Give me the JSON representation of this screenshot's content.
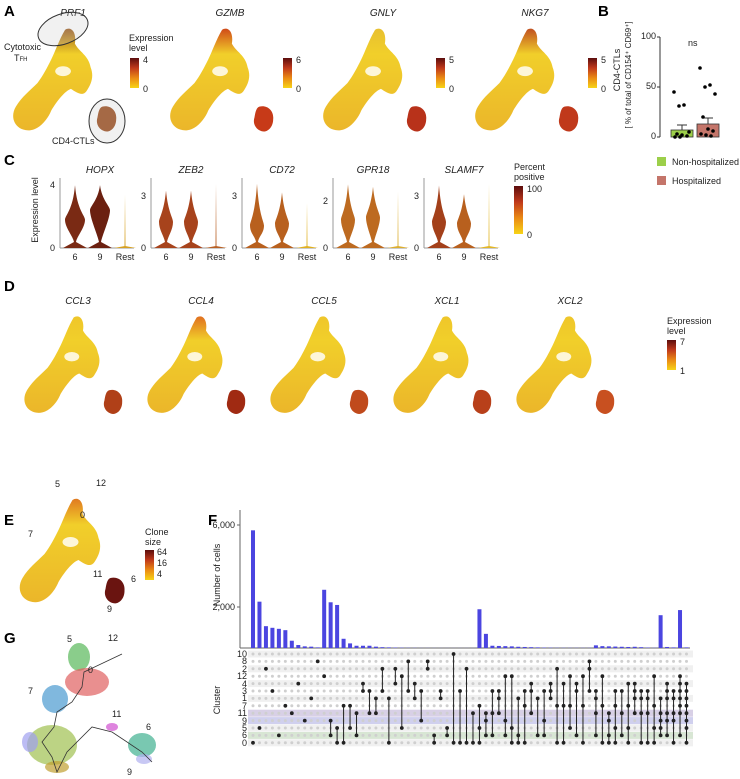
{
  "panel_labels": {
    "a": "A",
    "b": "B",
    "c": "C",
    "d": "D",
    "e": "E",
    "f": "F",
    "g": "G"
  },
  "panel_a": {
    "legend_title": "Expression level",
    "umaps": [
      {
        "gene": "PRF1",
        "max": "4",
        "min": "0"
      },
      {
        "gene": "GZMB",
        "max": "6",
        "min": "0"
      },
      {
        "gene": "GNLY",
        "max": "5",
        "min": "0"
      },
      {
        "gene": "NKG7",
        "max": "5",
        "min": "0"
      }
    ],
    "annotation_cytotoxic": "Cytotoxic",
    "annotation_tfh": "T",
    "annotation_tfh_sub": "FH",
    "annotation_ctl": "CD4-CTLs"
  },
  "panel_b": {
    "ylabel": "CD4-CTLs",
    "ylabel2": "[ % of total of CD154⁺ CD69⁺]",
    "ticks": [
      "100",
      "50",
      "0"
    ],
    "significance": "ns",
    "legend": [
      {
        "label": "Non-hospitalized",
        "color": "#9ccf4a"
      },
      {
        "label": "Hospitalized",
        "color": "#c4756a"
      }
    ],
    "chart_data": {
      "type": "bar",
      "categories": [
        "Non-hospitalized",
        "Hospitalized"
      ],
      "values": [
        7,
        13
      ],
      "errors": [
        5,
        6
      ],
      "points": [
        [
          45,
          31,
          32,
          5,
          3,
          2,
          1,
          0,
          0
        ],
        [
          69,
          50,
          52,
          43,
          20,
          8,
          6,
          3,
          2,
          1
        ]
      ],
      "ylim": [
        0,
        100
      ]
    }
  },
  "panel_c": {
    "ylabel": "Expression level",
    "legend_title": "Percent positive",
    "legend_max": "100",
    "legend_min": "0",
    "groups": [
      "6",
      "9",
      "Rest"
    ],
    "chart_data": {
      "type": "violin",
      "genes": [
        {
          "gene": "HOPX",
          "ymax_tick": "4",
          "ymax": 4.2,
          "max": [
            4,
            4,
            3.4
          ],
          "peak": [
            1.8,
            2.4,
            0
          ],
          "color": [
            "#7a2a14",
            "#6b2010",
            "#d6a020"
          ]
        },
        {
          "gene": "ZEB2",
          "ymax_tick": "3",
          "ymax": 3.8,
          "max": [
            3.3,
            3.3,
            3.7
          ],
          "peak": [
            1.5,
            1.5,
            0
          ],
          "color": [
            "#a7431c",
            "#a7431c",
            "#b86025"
          ]
        },
        {
          "gene": "CD72",
          "ymax_tick": "3",
          "ymax": 3.8,
          "max": [
            3.7,
            3.2,
            2.6
          ],
          "peak": [
            1.3,
            1.4,
            0
          ],
          "color": [
            "#b8601e",
            "#b8601e",
            "#e0b020"
          ]
        },
        {
          "gene": "GPR18",
          "ymax_tick": "2",
          "ymax": 2.8,
          "max": [
            2.7,
            2.6,
            2.4
          ],
          "peak": [
            1.2,
            1.3,
            0
          ],
          "color": [
            "#bd6a20",
            "#bd6a20",
            "#dcae30"
          ]
        },
        {
          "gene": "SLAMF7",
          "ymax_tick": "3",
          "ymax": 3.8,
          "max": [
            3.6,
            3.1,
            3.7
          ],
          "peak": [
            1.5,
            1.4,
            0
          ],
          "color": [
            "#a3401a",
            "#b8601e",
            "#e2b626"
          ]
        }
      ]
    }
  },
  "panel_d": {
    "legend_title": "Expression level",
    "legend_max": "7",
    "legend_min": "1",
    "genes": [
      "CCL3",
      "CCL4",
      "CCL5",
      "XCL1",
      "XCL2"
    ]
  },
  "panel_e": {
    "legend_title": "Clone size",
    "legend_ticks": [
      "64",
      "16",
      "4"
    ],
    "cluster_labels": [
      "5",
      "12",
      "0",
      "7",
      "11",
      "6",
      "9"
    ]
  },
  "panel_f": {
    "ylabel": "Number of cells",
    "matrix_label": "Cluster",
    "yticks": [
      "6,000",
      "2,000"
    ],
    "bar_color": "#4b45e0",
    "rows": [
      "10",
      "8",
      "2",
      "12",
      "4",
      "3",
      "1",
      "7",
      "11",
      "9",
      "5",
      "6",
      "0"
    ],
    "chart_data": {
      "type": "upset",
      "ylim": [
        0,
        6500
      ],
      "values": [
        5740,
        2260,
        1065,
        985,
        935,
        870,
        355,
        145,
        80,
        65,
        30,
        2840,
        2230,
        2100,
        450,
        225,
        110,
        110,
        110,
        65,
        40,
        30,
        20,
        15,
        10,
        8,
        5,
        5,
        4,
        3,
        3,
        3,
        3,
        3,
        3,
        1890,
        690,
        110,
        100,
        90,
        80,
        60,
        50,
        40,
        30,
        20,
        15,
        10,
        10,
        8,
        8,
        8,
        8,
        130,
        90,
        80,
        70,
        60,
        50,
        60,
        40,
        20,
        10,
        1600,
        50,
        30,
        1850,
        30
      ],
      "sets": [
        [
          "0"
        ],
        [
          "5"
        ],
        [
          "2"
        ],
        [
          "3"
        ],
        [
          "6"
        ],
        [
          "7"
        ],
        [
          "11"
        ],
        [
          "4"
        ],
        [
          "9"
        ],
        [
          "1"
        ],
        [
          "8"
        ],
        [
          "12"
        ],
        [
          "9",
          "6"
        ],
        [
          "5",
          "0"
        ],
        [
          "7",
          "0"
        ],
        [
          "7",
          "5"
        ],
        [
          "11",
          "6"
        ],
        [
          "4",
          "3"
        ],
        [
          "3",
          "11"
        ],
        [
          "1",
          "11"
        ],
        [
          "2",
          "3"
        ],
        [
          "1",
          "0"
        ],
        [
          "2",
          "4"
        ],
        [
          "12",
          "5"
        ],
        [
          "8",
          "3"
        ],
        [
          "4",
          "1"
        ],
        [
          "3",
          "9"
        ],
        [
          "8",
          "2"
        ],
        [
          "6",
          "0"
        ],
        [
          "3",
          "1"
        ],
        [
          "5",
          "6"
        ],
        [
          "10",
          "0"
        ],
        [
          "3",
          "0"
        ],
        [
          "2",
          "0"
        ],
        [
          "11",
          "0"
        ],
        [
          "7",
          "5",
          "0"
        ],
        [
          "11",
          "9",
          "6"
        ],
        [
          "3",
          "11",
          "6"
        ],
        [
          "3",
          "1",
          "11"
        ],
        [
          "12",
          "9",
          "6"
        ],
        [
          "12",
          "5",
          "0"
        ],
        [
          "1",
          "6",
          "0"
        ],
        [
          "3",
          "7",
          "0"
        ],
        [
          "4",
          "3",
          "11"
        ],
        [
          "1",
          "6"
        ],
        [
          "3",
          "9",
          "6"
        ],
        [
          "4",
          "3",
          "1"
        ],
        [
          "2",
          "7",
          "0"
        ],
        [
          "4",
          "7",
          "0"
        ],
        [
          "12",
          "7",
          "5"
        ],
        [
          "4",
          "3",
          "6"
        ],
        [
          "12",
          "7",
          "0"
        ],
        [
          "8",
          "2",
          "3"
        ],
        [
          "3",
          "1",
          "11",
          "6"
        ],
        [
          "12",
          "7",
          "0"
        ],
        [
          "11",
          "9",
          "6",
          "0"
        ],
        [
          "3",
          "7",
          "5",
          "0"
        ],
        [
          "3",
          "11",
          "6"
        ],
        [
          "4",
          "7",
          "5",
          "0"
        ],
        [
          "4",
          "3",
          "1",
          "11"
        ],
        [
          "3",
          "1",
          "11",
          "0"
        ],
        [
          "3",
          "1",
          "11",
          "0"
        ],
        [
          "12",
          "7",
          "5",
          "0"
        ],
        [
          "1",
          "11",
          "9",
          "5",
          "6"
        ],
        [
          "4",
          "3",
          "1",
          "11",
          "9",
          "6"
        ],
        [
          "3",
          "1",
          "11",
          "9",
          "0"
        ],
        [
          "12",
          "4",
          "3",
          "1",
          "7",
          "11",
          "6"
        ],
        [
          "4",
          "3",
          "1",
          "7",
          "11",
          "9",
          "5",
          "0"
        ]
      ]
    }
  },
  "panel_g": {
    "cluster_labels": [
      "5",
      "12",
      "0",
      "7",
      "11",
      "6",
      "9"
    ]
  }
}
